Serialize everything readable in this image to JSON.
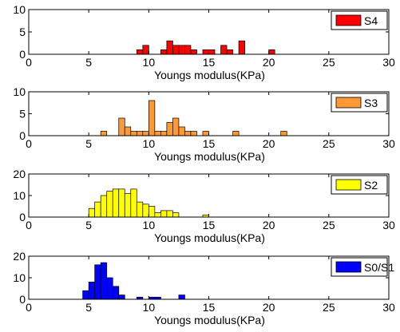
{
  "chart_data": [
    {
      "type": "bar",
      "series": [
        {
          "name": "S4",
          "color": "#ff0000"
        }
      ],
      "xlabel": "Youngs modulus(KPa)",
      "xlim": [
        0,
        30
      ],
      "ylim": [
        0,
        10
      ],
      "xticks": [
        "0",
        "5",
        "10",
        "15",
        "20",
        "25",
        "30"
      ],
      "yticks": [
        "0",
        "5",
        "10"
      ],
      "grid": false,
      "legend_position": "top-right",
      "bin_width": 0.5,
      "bins": [
        {
          "x": 9.25,
          "y": 1
        },
        {
          "x": 9.75,
          "y": 2
        },
        {
          "x": 11.25,
          "y": 1
        },
        {
          "x": 11.75,
          "y": 3
        },
        {
          "x": 12.25,
          "y": 2
        },
        {
          "x": 12.75,
          "y": 2
        },
        {
          "x": 13.25,
          "y": 2
        },
        {
          "x": 13.75,
          "y": 1
        },
        {
          "x": 14.75,
          "y": 1
        },
        {
          "x": 15.25,
          "y": 1
        },
        {
          "x": 16.25,
          "y": 2
        },
        {
          "x": 16.75,
          "y": 1
        },
        {
          "x": 17.75,
          "y": 3
        },
        {
          "x": 20.25,
          "y": 1
        }
      ]
    },
    {
      "type": "bar",
      "series": [
        {
          "name": "S3",
          "color": "#ff9933"
        }
      ],
      "xlabel": "Youngs modulus(KPa)",
      "xlim": [
        0,
        30
      ],
      "ylim": [
        0,
        10
      ],
      "xticks": [
        "0",
        "5",
        "10",
        "15",
        "20",
        "25",
        "30"
      ],
      "yticks": [
        "0",
        "5",
        "10"
      ],
      "grid": false,
      "legend_position": "top-right",
      "bin_width": 0.5,
      "bins": [
        {
          "x": 6.25,
          "y": 1
        },
        {
          "x": 7.75,
          "y": 4
        },
        {
          "x": 8.25,
          "y": 2
        },
        {
          "x": 8.75,
          "y": 1
        },
        {
          "x": 9.25,
          "y": 1
        },
        {
          "x": 9.75,
          "y": 1
        },
        {
          "x": 10.25,
          "y": 8
        },
        {
          "x": 10.75,
          "y": 1
        },
        {
          "x": 11.25,
          "y": 1
        },
        {
          "x": 11.75,
          "y": 3
        },
        {
          "x": 12.25,
          "y": 4
        },
        {
          "x": 12.75,
          "y": 2
        },
        {
          "x": 13.25,
          "y": 1
        },
        {
          "x": 13.75,
          "y": 1
        },
        {
          "x": 14.75,
          "y": 1
        },
        {
          "x": 17.25,
          "y": 1
        },
        {
          "x": 21.25,
          "y": 1
        }
      ]
    },
    {
      "type": "bar",
      "series": [
        {
          "name": "S2",
          "color": "#ffff00"
        }
      ],
      "xlabel": "Youngs modulus(KPa)",
      "xlim": [
        0,
        30
      ],
      "ylim": [
        0,
        20
      ],
      "xticks": [
        "0",
        "5",
        "10",
        "15",
        "20",
        "25",
        "30"
      ],
      "yticks": [
        "0",
        "10",
        "20"
      ],
      "grid": false,
      "legend_position": "top-right",
      "bin_width": 0.5,
      "bins": [
        {
          "x": 5.25,
          "y": 4
        },
        {
          "x": 5.75,
          "y": 7
        },
        {
          "x": 6.25,
          "y": 10
        },
        {
          "x": 6.75,
          "y": 12
        },
        {
          "x": 7.25,
          "y": 13
        },
        {
          "x": 7.75,
          "y": 13
        },
        {
          "x": 8.25,
          "y": 11
        },
        {
          "x": 8.75,
          "y": 13
        },
        {
          "x": 9.25,
          "y": 7
        },
        {
          "x": 9.75,
          "y": 6
        },
        {
          "x": 10.25,
          "y": 5
        },
        {
          "x": 10.75,
          "y": 2
        },
        {
          "x": 11.25,
          "y": 3
        },
        {
          "x": 11.75,
          "y": 3
        },
        {
          "x": 12.25,
          "y": 2
        },
        {
          "x": 14.75,
          "y": 1
        }
      ]
    },
    {
      "type": "bar",
      "series": [
        {
          "name": "S0/S1",
          "color": "#0000ff"
        }
      ],
      "xlabel": "Youngs modulus(KPa)",
      "xlim": [
        0,
        30
      ],
      "ylim": [
        0,
        20
      ],
      "xticks": [
        "0",
        "5",
        "10",
        "15",
        "20",
        "25",
        "30"
      ],
      "yticks": [
        "0",
        "10",
        "20"
      ],
      "grid": false,
      "legend_position": "top-right",
      "bin_width": 0.5,
      "bins": [
        {
          "x": 4.75,
          "y": 4
        },
        {
          "x": 5.25,
          "y": 8
        },
        {
          "x": 5.75,
          "y": 16
        },
        {
          "x": 6.25,
          "y": 17
        },
        {
          "x": 6.75,
          "y": 10
        },
        {
          "x": 7.25,
          "y": 6
        },
        {
          "x": 7.75,
          "y": 2
        },
        {
          "x": 9.25,
          "y": 1
        },
        {
          "x": 10.25,
          "y": 1
        },
        {
          "x": 10.75,
          "y": 1
        },
        {
          "x": 12.75,
          "y": 2
        }
      ]
    }
  ]
}
